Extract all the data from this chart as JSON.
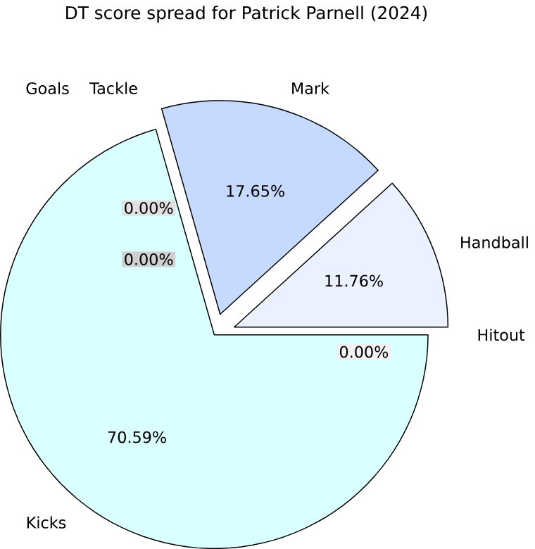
{
  "chart_data": {
    "type": "pie",
    "title": "DT score spread for Patrick Parnell (2024)",
    "categories": [
      "Hitout",
      "Handball",
      "Mark",
      "Tackle",
      "Goals",
      "Kicks"
    ],
    "values": [
      0,
      11.76,
      17.65,
      0,
      0,
      70.59
    ],
    "colors": [
      "#f2f2f2",
      "#ebf1ff",
      "#c6d9ff",
      "#e0e0e0",
      "#d0d0d0",
      "#d9ffff"
    ],
    "value_labels": [
      "0.00%",
      "11.76%",
      "17.65%",
      "0.00%",
      "0.00%",
      "70.59%"
    ]
  }
}
